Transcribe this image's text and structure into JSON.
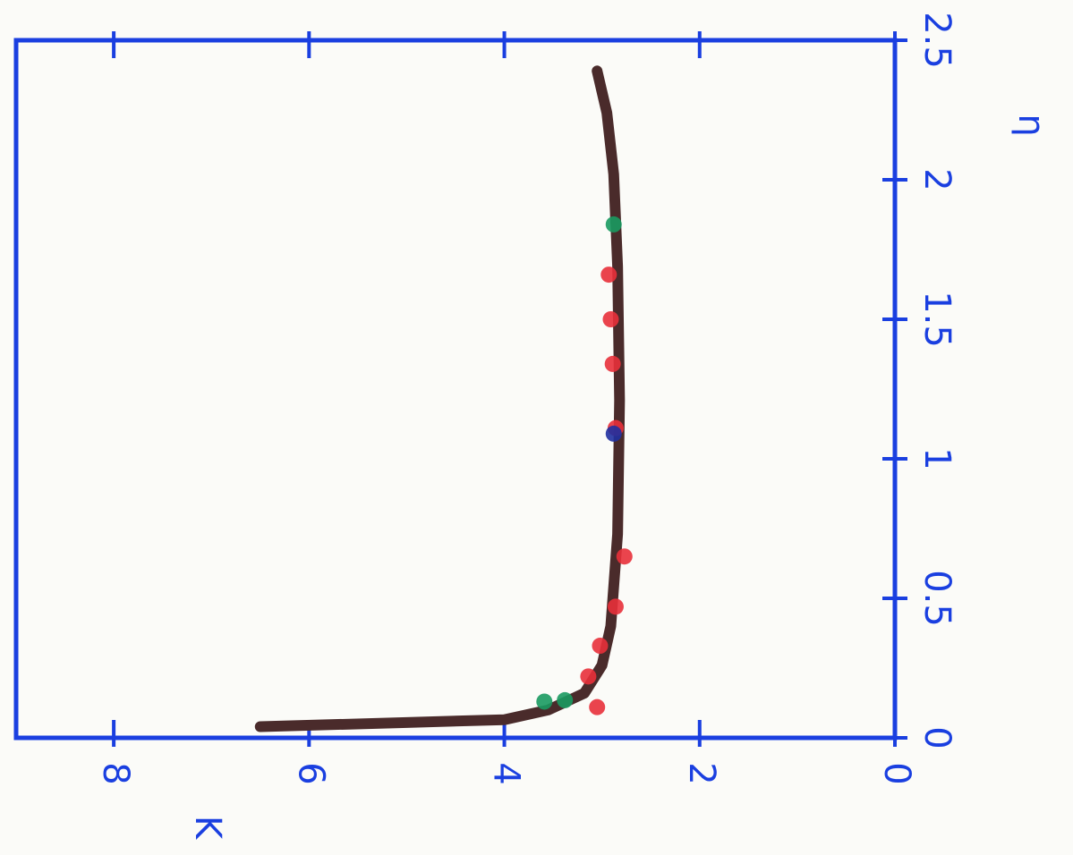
{
  "chart_data": {
    "type": "line",
    "x_label": "K",
    "y_label": "η",
    "xlim": [
      9,
      0
    ],
    "xticks": [
      8,
      6,
      4,
      2,
      0
    ],
    "ylim": [
      0,
      2.5
    ],
    "yticks": [
      0,
      0.5,
      1,
      1.5,
      2,
      2.5
    ],
    "axis_color": "#1a3fe0",
    "series": [
      {
        "style": "line",
        "color": "#4a2b2b",
        "x": [
          6.5,
          5.0,
          4.0,
          3.55,
          3.18,
          3.0,
          2.91,
          2.84,
          2.82,
          2.84,
          2.88,
          2.95,
          3.05
        ],
        "values": [
          0.04,
          0.055,
          0.065,
          0.1,
          0.16,
          0.26,
          0.4,
          0.73,
          1.21,
          1.69,
          2.02,
          2.24,
          2.39
        ]
      },
      {
        "style": "points",
        "color": "#e8303a",
        "x": [
          3.05,
          3.14,
          3.02,
          2.86,
          2.77,
          2.86,
          2.89,
          2.91,
          2.93
        ],
        "values": [
          0.11,
          0.22,
          0.33,
          0.47,
          0.65,
          1.11,
          1.34,
          1.5,
          1.66
        ]
      },
      {
        "style": "points",
        "color": "#1a9a60",
        "x": [
          3.59,
          3.38,
          2.88
        ],
        "values": [
          0.13,
          0.135,
          1.84
        ]
      },
      {
        "style": "points",
        "color": "#2030a0",
        "x": [
          2.88
        ],
        "values": [
          1.09
        ]
      }
    ]
  }
}
